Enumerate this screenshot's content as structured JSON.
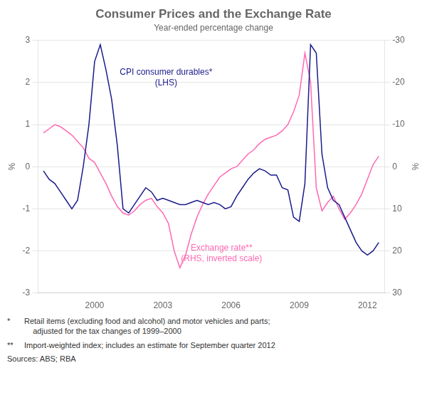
{
  "chart_data": {
    "type": "line",
    "title": "Consumer Prices and the Exchange Rate",
    "subtitle": "Year-ended percentage change",
    "ylabel": "%",
    "y2label": "%",
    "x": [
      1997.75,
      1998.0,
      1998.25,
      1998.5,
      1998.75,
      1999.0,
      1999.25,
      1999.5,
      1999.75,
      2000.0,
      2000.25,
      2000.5,
      2000.75,
      2001.0,
      2001.25,
      2001.5,
      2001.75,
      2002.0,
      2002.25,
      2002.5,
      2002.75,
      2003.0,
      2003.25,
      2003.5,
      2003.75,
      2004.0,
      2004.25,
      2004.5,
      2004.75,
      2005.0,
      2005.25,
      2005.5,
      2005.75,
      2006.0,
      2006.25,
      2006.5,
      2006.75,
      2007.0,
      2007.25,
      2007.5,
      2007.75,
      2008.0,
      2008.25,
      2008.5,
      2008.75,
      2009.0,
      2009.25,
      2009.5,
      2009.75,
      2010.0,
      2010.25,
      2010.5,
      2010.75,
      2011.0,
      2011.25,
      2011.5,
      2011.75,
      2012.0,
      2012.25,
      2012.5
    ],
    "series": [
      {
        "color": "#1a1a8c",
        "axis": "y",
        "values": [
          -0.1,
          -0.3,
          -0.4,
          -0.6,
          -0.8,
          -1.0,
          -0.8,
          0.0,
          1.0,
          2.5,
          2.9,
          2.3,
          1.6,
          0.5,
          -1.0,
          -1.1,
          -0.9,
          -0.7,
          -0.5,
          -0.6,
          -0.8,
          -0.75,
          -0.8,
          -0.85,
          -0.9,
          -0.9,
          -0.85,
          -0.8,
          -0.85,
          -0.9,
          -0.85,
          -0.9,
          -1.0,
          -0.95,
          -0.7,
          -0.5,
          -0.3,
          -0.15,
          -0.05,
          -0.1,
          -0.2,
          -0.2,
          -0.5,
          -0.55,
          -1.2,
          -1.3,
          -0.4,
          2.9,
          2.7,
          0.3,
          -0.5,
          -0.8,
          -0.9,
          -1.2,
          -1.5,
          -1.8,
          -2.0,
          -2.1,
          -2.0,
          -1.8
        ]
      },
      {
        "color": "#ff69b4",
        "axis": "y2",
        "values": [
          -8.0,
          -9.0,
          -10.0,
          -9.5,
          -8.5,
          -7.5,
          -6.0,
          -4.5,
          -2.0,
          -1.0,
          1.5,
          4.0,
          7.0,
          9.5,
          11.0,
          11.5,
          10.5,
          9.0,
          8.0,
          7.5,
          9.5,
          11.0,
          13.5,
          20.0,
          24.0,
          21.0,
          16.0,
          12.0,
          9.0,
          6.5,
          4.5,
          2.5,
          1.5,
          0.5,
          0.0,
          -1.5,
          -3.0,
          -4.0,
          -5.5,
          -6.5,
          -7.0,
          -7.5,
          -8.5,
          -10.0,
          -13.0,
          -17.0,
          -27.0,
          -20.0,
          5.0,
          10.5,
          8.5,
          7.0,
          10.0,
          12.5,
          11.0,
          9.0,
          6.5,
          3.0,
          -0.5,
          -2.5
        ]
      }
    ],
    "xlim": [
      1997.5,
      2012.75
    ],
    "xticks": [
      2000,
      2003,
      2006,
      2009,
      2012
    ],
    "ylim": [
      -3,
      3
    ],
    "yticks": [
      -3,
      -2,
      -1,
      0,
      1,
      2,
      3
    ],
    "y2lim": [
      30,
      -30
    ],
    "y2ticks": [
      30,
      20,
      10,
      0,
      -10,
      -20,
      -30
    ],
    "grid": true,
    "annotations": [
      {
        "text": "CPI consumer durables*\n(LHS)",
        "color": "#1a1a8c"
      },
      {
        "text": "Exchange rate**\n(RHS, inverted scale)",
        "color": "#ff69b4"
      }
    ],
    "footnotes": [
      {
        "bullet": "*",
        "text": "Retail items (excluding food and alcohol) and motor vehicles and parts;\n    adjusted for the tax changes of 1999–2000"
      },
      {
        "bullet": "**",
        "text": "Import-weighted index; includes an estimate for September quarter 2012"
      },
      {
        "text": "Sources: ABS; RBA"
      }
    ]
  }
}
